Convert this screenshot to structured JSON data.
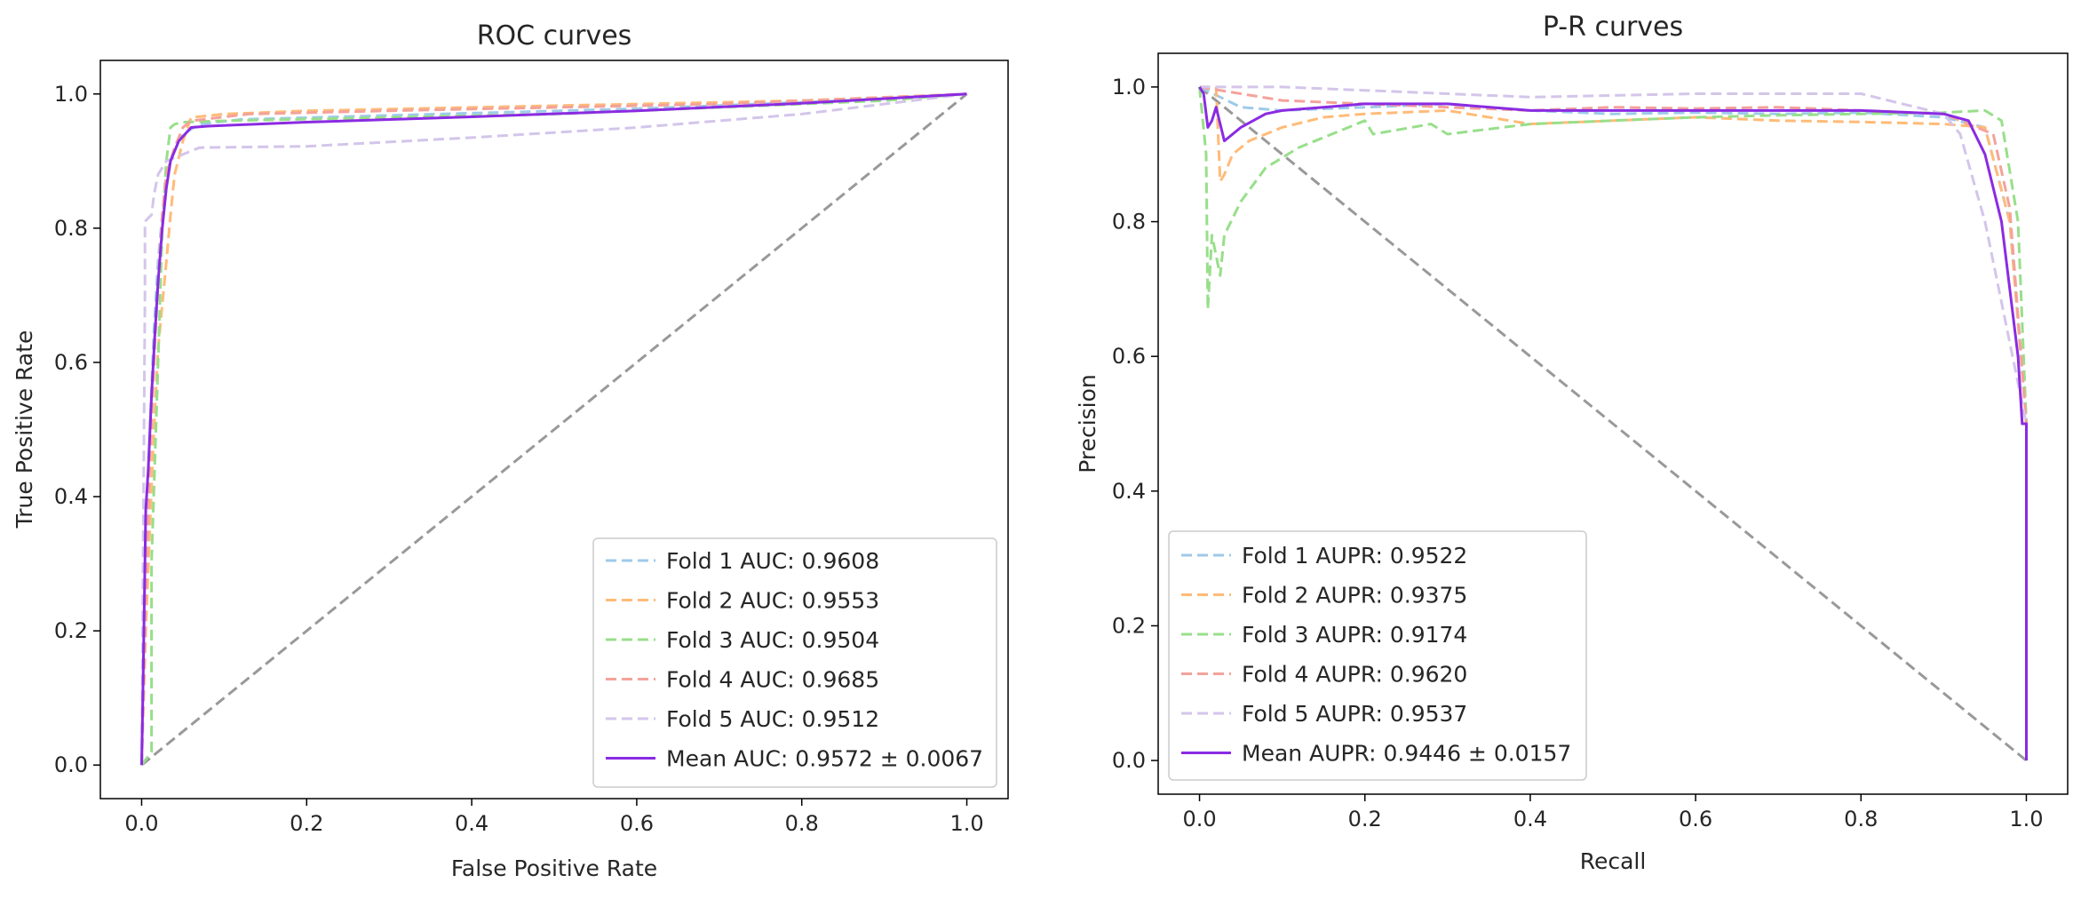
{
  "chart_data": [
    {
      "type": "line",
      "title": "ROC curves",
      "xlabel": "False Positive Rate",
      "ylabel": "True Positive Rate",
      "xlim": [
        -0.05,
        1.05
      ],
      "ylim": [
        -0.05,
        1.05
      ],
      "xticks": [
        "0.0",
        "0.2",
        "0.4",
        "0.6",
        "0.8",
        "1.0"
      ],
      "yticks": [
        "0.0",
        "0.2",
        "0.4",
        "0.6",
        "0.8",
        "1.0"
      ],
      "legend_position": "lower-right",
      "baseline": {
        "x": [
          0,
          1
        ],
        "y": [
          0,
          1
        ],
        "color": "#999999",
        "style": "dashed"
      },
      "series": [
        {
          "name": "Fold 1 AUC: 0.9608",
          "color": "#9ecae9",
          "style": "dashed",
          "x": [
            0,
            0.003,
            0.006,
            0.01,
            0.015,
            0.02,
            0.025,
            0.03,
            0.04,
            0.05,
            0.07,
            0.12,
            0.3,
            0.6,
            0.85,
            1.0
          ],
          "y": [
            0,
            0.15,
            0.35,
            0.5,
            0.65,
            0.75,
            0.82,
            0.88,
            0.92,
            0.94,
            0.955,
            0.962,
            0.968,
            0.978,
            0.99,
            1.0
          ]
        },
        {
          "name": "Fold 2 AUC: 0.9553",
          "color": "#ffbb78",
          "style": "dashed",
          "x": [
            0,
            0.005,
            0.01,
            0.015,
            0.02,
            0.03,
            0.035,
            0.04,
            0.05,
            0.06,
            0.1,
            0.2,
            0.4,
            0.6,
            0.8,
            1.0
          ],
          "y": [
            0,
            0.2,
            0.35,
            0.5,
            0.62,
            0.75,
            0.82,
            0.88,
            0.93,
            0.965,
            0.97,
            0.975,
            0.98,
            0.985,
            0.99,
            1.0
          ]
        },
        {
          "name": "Fold 3 AUC: 0.9504",
          "color": "#98df8a",
          "style": "dashed",
          "x": [
            0,
            0.012,
            0.012,
            0.02,
            0.025,
            0.03,
            0.035,
            0.04,
            0.05,
            0.1,
            0.3,
            0.5,
            0.7,
            0.9,
            1.0
          ],
          "y": [
            0,
            0.02,
            0.3,
            0.6,
            0.8,
            0.9,
            0.95,
            0.955,
            0.958,
            0.96,
            0.965,
            0.97,
            0.98,
            0.99,
            1.0
          ]
        },
        {
          "name": "Fold 4 AUC: 0.9685",
          "color": "#f4a29a",
          "style": "dashed",
          "x": [
            0,
            0.005,
            0.01,
            0.015,
            0.02,
            0.025,
            0.03,
            0.04,
            0.05,
            0.06,
            0.13,
            0.3,
            0.5,
            0.7,
            0.9,
            1.0
          ],
          "y": [
            0,
            0.25,
            0.45,
            0.6,
            0.72,
            0.82,
            0.88,
            0.92,
            0.95,
            0.96,
            0.97,
            0.975,
            0.98,
            0.985,
            0.995,
            1.0
          ]
        },
        {
          "name": "Fold 5 AUC: 0.9512",
          "color": "#d4c5ea",
          "style": "dashed",
          "x": [
            0,
            0.004,
            0.004,
            0.012,
            0.015,
            0.02,
            0.03,
            0.05,
            0.07,
            0.2,
            0.4,
            0.6,
            0.8,
            1.0
          ],
          "y": [
            0,
            0.7,
            0.81,
            0.82,
            0.85,
            0.88,
            0.9,
            0.91,
            0.92,
            0.922,
            0.935,
            0.95,
            0.97,
            1.0
          ]
        },
        {
          "name": "Mean AUC: 0.9572 ± 0.0067",
          "color": "#8a2be2",
          "style": "solid",
          "x": [
            0,
            0.002,
            0.005,
            0.008,
            0.012,
            0.016,
            0.02,
            0.025,
            0.03,
            0.035,
            0.045,
            0.06,
            0.08,
            0.2,
            0.4,
            0.6,
            0.8,
            1.0
          ],
          "y": [
            0,
            0.14,
            0.38,
            0.44,
            0.55,
            0.64,
            0.72,
            0.8,
            0.86,
            0.9,
            0.93,
            0.95,
            0.952,
            0.958,
            0.966,
            0.975,
            0.986,
            1.0
          ]
        }
      ]
    },
    {
      "type": "line",
      "title": "P-R curves",
      "xlabel": "Recall",
      "ylabel": "Precision",
      "xlim": [
        -0.05,
        1.05
      ],
      "ylim": [
        -0.05,
        1.05
      ],
      "xticks": [
        "0.0",
        "0.2",
        "0.4",
        "0.6",
        "0.8",
        "1.0"
      ],
      "yticks": [
        "0.0",
        "0.2",
        "0.4",
        "0.6",
        "0.8",
        "1.0"
      ],
      "legend_position": "lower-left",
      "baseline": {
        "x": [
          0,
          1
        ],
        "y": [
          1,
          0
        ],
        "color": "#999999",
        "style": "dashed"
      },
      "series": [
        {
          "name": "Fold 1 AUPR: 0.9522",
          "color": "#9ecae9",
          "style": "dashed",
          "x": [
            0,
            0.05,
            0.1,
            0.2,
            0.3,
            0.4,
            0.5,
            0.6,
            0.7,
            0.8,
            0.9,
            0.95,
            0.98,
            1.0
          ],
          "y": [
            1.0,
            0.97,
            0.965,
            0.97,
            0.975,
            0.965,
            0.96,
            0.962,
            0.96,
            0.962,
            0.955,
            0.94,
            0.8,
            0.5
          ]
        },
        {
          "name": "Fold 2 AUPR: 0.9375",
          "color": "#ffbb78",
          "style": "dashed",
          "x": [
            0,
            0.02,
            0.025,
            0.03,
            0.04,
            0.06,
            0.1,
            0.15,
            0.2,
            0.3,
            0.4,
            0.5,
            0.6,
            0.7,
            0.8,
            0.9,
            0.95,
            0.98,
            1.0
          ],
          "y": [
            1.0,
            1.0,
            0.86,
            0.87,
            0.9,
            0.92,
            0.94,
            0.955,
            0.96,
            0.965,
            0.945,
            0.95,
            0.955,
            0.95,
            0.948,
            0.945,
            0.94,
            0.8,
            0.5
          ]
        },
        {
          "name": "Fold 3 AUPR: 0.9174",
          "color": "#98df8a",
          "style": "dashed",
          "x": [
            0,
            0.008,
            0.01,
            0.015,
            0.025,
            0.03,
            0.05,
            0.08,
            0.12,
            0.16,
            0.2,
            0.21,
            0.28,
            0.3,
            0.4,
            0.5,
            0.6,
            0.7,
            0.8,
            0.9,
            0.95,
            0.97,
            0.99,
            1.0
          ],
          "y": [
            1.0,
            0.9,
            0.67,
            0.78,
            0.72,
            0.78,
            0.83,
            0.88,
            0.91,
            0.93,
            0.95,
            0.93,
            0.945,
            0.93,
            0.945,
            0.95,
            0.955,
            0.958,
            0.96,
            0.962,
            0.965,
            0.95,
            0.8,
            0.5
          ]
        },
        {
          "name": "Fold 4 AUPR: 0.9620",
          "color": "#f4a29a",
          "style": "dashed",
          "x": [
            0,
            0.1,
            0.2,
            0.3,
            0.4,
            0.5,
            0.6,
            0.7,
            0.8,
            0.9,
            0.96,
            0.98,
            1.0
          ],
          "y": [
            1.0,
            0.98,
            0.975,
            0.97,
            0.965,
            0.97,
            0.968,
            0.97,
            0.965,
            0.96,
            0.93,
            0.82,
            0.5
          ]
        },
        {
          "name": "Fold 5 AUPR: 0.9537",
          "color": "#d4c5ea",
          "style": "dashed",
          "x": [
            0,
            0.1,
            0.2,
            0.3,
            0.4,
            0.6,
            0.8,
            0.85,
            0.9,
            0.92,
            0.95,
            1.0
          ],
          "y": [
            1.0,
            1.0,
            0.995,
            0.99,
            0.985,
            0.99,
            0.99,
            0.975,
            0.96,
            0.93,
            0.8,
            0.5
          ]
        },
        {
          "name": "Mean AUPR: 0.9446 ± 0.0157",
          "color": "#8a2be2",
          "style": "solid",
          "x": [
            0,
            0.005,
            0.01,
            0.015,
            0.02,
            0.03,
            0.05,
            0.08,
            0.1,
            0.15,
            0.2,
            0.3,
            0.4,
            0.5,
            0.6,
            0.7,
            0.8,
            0.9,
            0.93,
            0.95,
            0.97,
            0.99,
            0.995,
            1.0,
            1.0
          ],
          "y": [
            1.0,
            0.99,
            0.94,
            0.95,
            0.97,
            0.92,
            0.94,
            0.96,
            0.965,
            0.97,
            0.975,
            0.975,
            0.965,
            0.965,
            0.965,
            0.965,
            0.965,
            0.96,
            0.95,
            0.9,
            0.8,
            0.6,
            0.5,
            0.5,
            0.0
          ]
        }
      ]
    }
  ]
}
